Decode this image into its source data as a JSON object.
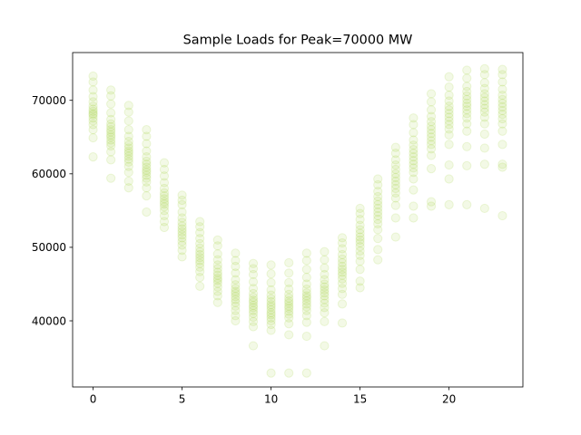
{
  "chart_data": {
    "type": "scatter",
    "title": "Sample Loads for Peak=70000 MW",
    "xlabel": "",
    "ylabel": "",
    "xlim": [
      -1.15,
      24.15
    ],
    "ylim": [
      31000,
      76500
    ],
    "x_ticks": [
      0,
      5,
      10,
      15,
      20
    ],
    "y_ticks": [
      40000,
      50000,
      60000,
      70000
    ],
    "x_tick_labels": [
      "0",
      "5",
      "10",
      "15",
      "20"
    ],
    "y_tick_labels": [
      "40000",
      "50000",
      "60000",
      "70000"
    ],
    "grid": false,
    "legend": "none",
    "marker_color": "#9acd32",
    "marker_opacity": 0.12,
    "series": [
      {
        "values_by_hour": [
          [
            62300,
            64900,
            66000,
            66700,
            67200,
            67600,
            68000,
            68200,
            68500,
            68800,
            69200,
            69800,
            70500,
            71400,
            72500,
            73300
          ],
          [
            59400,
            61900,
            63000,
            63800,
            64200,
            64600,
            65000,
            65300,
            65700,
            66000,
            66400,
            66800,
            67400,
            68300,
            69500,
            70600,
            71400
          ],
          [
            58100,
            59000,
            60200,
            61000,
            61600,
            62000,
            62400,
            62800,
            63100,
            63500,
            63900,
            64400,
            65100,
            66000,
            67200,
            68400,
            69300
          ],
          [
            54800,
            57000,
            58100,
            58900,
            59400,
            59800,
            60200,
            60500,
            60900,
            61300,
            61700,
            62300,
            63100,
            64100,
            65100,
            66000
          ],
          [
            52700,
            53500,
            54300,
            55000,
            55500,
            55900,
            56200,
            56600,
            57000,
            57400,
            58000,
            58800,
            59700,
            60600,
            61500
          ],
          [
            48700,
            49600,
            50300,
            50800,
            51300,
            51700,
            52100,
            52500,
            52900,
            53400,
            54000,
            54800,
            55800,
            56400,
            57100
          ],
          [
            44700,
            45900,
            46700,
            47300,
            47800,
            48200,
            48600,
            49000,
            49400,
            49900,
            50500,
            51200,
            52000,
            52800,
            53500
          ],
          [
            42500,
            43400,
            44000,
            44600,
            45100,
            45500,
            45800,
            46200,
            46600,
            47100,
            47600,
            48300,
            49100,
            50200,
            51000
          ],
          [
            40000,
            40700,
            41400,
            42000,
            42500,
            42900,
            43300,
            43700,
            44000,
            44400,
            44900,
            45600,
            46500,
            47400,
            48200,
            49200
          ],
          [
            36600,
            39200,
            39900,
            40500,
            41000,
            41400,
            41800,
            42100,
            42500,
            42800,
            43200,
            43700,
            44400,
            45300,
            46300,
            47100,
            47800
          ],
          [
            32900,
            38700,
            39500,
            40000,
            40400,
            40800,
            41100,
            41500,
            41900,
            42200,
            42600,
            43000,
            43500,
            44200,
            45200,
            46400,
            47600
          ],
          [
            32900,
            38100,
            39600,
            40400,
            40900,
            41300,
            41700,
            42000,
            42400,
            42700,
            43100,
            43600,
            44300,
            45200,
            46500,
            47900
          ],
          [
            32900,
            37900,
            39800,
            40700,
            41400,
            41900,
            42300,
            42700,
            43100,
            43400,
            43800,
            44300,
            45000,
            45900,
            47000,
            48200,
            49200
          ],
          [
            36600,
            39900,
            41100,
            41800,
            42400,
            42900,
            43400,
            43800,
            44200,
            44600,
            45000,
            45600,
            46300,
            47200,
            48300,
            49400
          ],
          [
            39700,
            42300,
            43600,
            44400,
            45100,
            45700,
            46200,
            46600,
            47000,
            47400,
            47900,
            48400,
            49000,
            49800,
            50600,
            51300
          ],
          [
            44500,
            45400,
            47000,
            48100,
            48900,
            49500,
            50100,
            50600,
            51000,
            51400,
            51900,
            52400,
            53000,
            53800,
            54600,
            55300
          ],
          [
            48300,
            49700,
            51200,
            52400,
            53200,
            53800,
            54300,
            54800,
            55300,
            55800,
            56300,
            56900,
            57600,
            58500,
            59300
          ],
          [
            51400,
            54000,
            55700,
            56700,
            57400,
            58000,
            58500,
            59000,
            59500,
            60000,
            60600,
            61200,
            61900,
            62800,
            63600
          ],
          [
            54000,
            55600,
            57800,
            59300,
            60200,
            60800,
            61300,
            61800,
            62300,
            62800,
            63300,
            63900,
            64600,
            65600,
            66700,
            67600
          ],
          [
            55600,
            56200,
            60700,
            62500,
            63400,
            64000,
            64500,
            65000,
            65500,
            66000,
            66500,
            67100,
            67800,
            68700,
            69800,
            70900
          ],
          [
            55800,
            59300,
            61200,
            64000,
            65300,
            66100,
            66700,
            67200,
            67700,
            68200,
            68700,
            69200,
            69900,
            70700,
            71800,
            73200
          ],
          [
            55800,
            61100,
            63700,
            65800,
            66800,
            67600,
            68200,
            68700,
            69200,
            69600,
            70100,
            70600,
            71200,
            71900,
            73000,
            74100
          ],
          [
            55300,
            61300,
            63500,
            65400,
            66800,
            67700,
            68400,
            68900,
            69400,
            69900,
            70400,
            70900,
            71600,
            72400,
            73500,
            74300
          ],
          [
            54300,
            60900,
            61300,
            64000,
            65800,
            66800,
            67500,
            68100,
            68600,
            69100,
            69600,
            70100,
            70700,
            71500,
            72500,
            73500,
            74200
          ]
        ]
      }
    ]
  }
}
